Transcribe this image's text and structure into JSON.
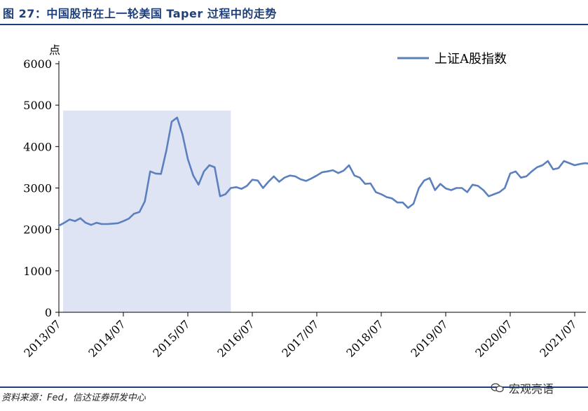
{
  "figure": {
    "title": "图 27：中国股市在上一轮美国 Taper 过程中的走势",
    "source": "资料来源：Fed，信达证券研发中心",
    "watermark": "宏观亮语",
    "watermark_icon": "wechat-icon"
  },
  "chart_data": {
    "type": "line",
    "title": "",
    "ylabel": "点",
    "xlabel": "",
    "ylim": [
      0,
      6000
    ],
    "yticks": [
      0,
      1000,
      2000,
      3000,
      4000,
      5000,
      6000
    ],
    "xlim": [
      "2013-07",
      "2021-10"
    ],
    "xticks": [
      "2013/07",
      "2014/07",
      "2015/07",
      "2016/07",
      "2017/07",
      "2018/07",
      "2019/07",
      "2020/07",
      "2021/07"
    ],
    "grid": false,
    "legend": "top-right",
    "shaded_region": {
      "from": "2013-07",
      "to": "2016-03",
      "color": "#dfe4f4"
    },
    "series": [
      {
        "name": "上证A股指数",
        "color": "#5b80bd",
        "x": [
          "2013-07",
          "2013-08",
          "2013-09",
          "2013-10",
          "2013-11",
          "2013-12",
          "2014-01",
          "2014-02",
          "2014-03",
          "2014-04",
          "2014-05",
          "2014-06",
          "2014-07",
          "2014-08",
          "2014-09",
          "2014-10",
          "2014-11",
          "2014-12",
          "2015-01",
          "2015-02",
          "2015-03",
          "2015-04",
          "2015-05",
          "2015-06",
          "2015-07",
          "2015-08",
          "2015-09",
          "2015-10",
          "2015-11",
          "2015-12",
          "2016-01",
          "2016-02",
          "2016-03",
          "2016-04",
          "2016-05",
          "2016-06",
          "2016-07",
          "2016-08",
          "2016-09",
          "2016-10",
          "2016-11",
          "2016-12",
          "2017-01",
          "2017-02",
          "2017-03",
          "2017-04",
          "2017-05",
          "2017-06",
          "2017-07",
          "2017-08",
          "2017-09",
          "2017-10",
          "2017-11",
          "2017-12",
          "2018-01",
          "2018-02",
          "2018-03",
          "2018-04",
          "2018-05",
          "2018-06",
          "2018-07",
          "2018-08",
          "2018-09",
          "2018-10",
          "2018-11",
          "2018-12",
          "2019-01",
          "2019-02",
          "2019-03",
          "2019-04",
          "2019-05",
          "2019-06",
          "2019-07",
          "2019-08",
          "2019-09",
          "2019-10",
          "2019-11",
          "2019-12",
          "2020-01",
          "2020-02",
          "2020-03",
          "2020-04",
          "2020-05",
          "2020-06",
          "2020-07",
          "2020-08",
          "2020-09",
          "2020-10",
          "2020-11",
          "2020-12",
          "2021-01",
          "2021-02",
          "2021-03",
          "2021-04",
          "2021-05",
          "2021-06",
          "2021-07",
          "2021-08",
          "2021-09",
          "2021-10"
        ],
        "values": [
          2090,
          2160,
          2240,
          2200,
          2270,
          2160,
          2110,
          2160,
          2130,
          2130,
          2140,
          2150,
          2200,
          2260,
          2380,
          2420,
          2680,
          3400,
          3350,
          3340,
          3900,
          4600,
          4700,
          4300,
          3700,
          3300,
          3080,
          3400,
          3550,
          3500,
          2800,
          2850,
          3000,
          3020,
          2980,
          3050,
          3200,
          3180,
          3000,
          3150,
          3280,
          3150,
          3250,
          3300,
          3280,
          3210,
          3170,
          3230,
          3300,
          3380,
          3400,
          3430,
          3360,
          3420,
          3550,
          3300,
          3250,
          3100,
          3110,
          2900,
          2850,
          2780,
          2750,
          2650,
          2650,
          2520,
          2620,
          3000,
          3180,
          3240,
          2950,
          3100,
          2990,
          2950,
          3000,
          3000,
          2900,
          3080,
          3050,
          2950,
          2800,
          2850,
          2900,
          3000,
          3350,
          3400,
          3250,
          3280,
          3400,
          3500,
          3550,
          3650,
          3450,
          3480,
          3650,
          3600,
          3550,
          3580,
          3600,
          3580
        ]
      }
    ]
  }
}
